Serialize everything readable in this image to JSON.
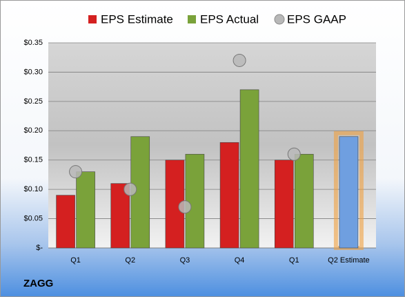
{
  "chart_data": {
    "type": "bar",
    "categories": [
      "Q1",
      "Q2",
      "Q3",
      "Q4",
      "Q1",
      "Q2 Estimate"
    ],
    "series": [
      {
        "name": "EPS Estimate",
        "color": "#d42020",
        "values": [
          0.09,
          0.11,
          0.15,
          0.18,
          0.15,
          0.19
        ]
      },
      {
        "name": "EPS Actual",
        "color": "#7aa23a",
        "values": [
          0.13,
          0.19,
          0.16,
          0.27,
          0.16,
          null
        ]
      },
      {
        "name": "EPS GAAP",
        "color": "#b8b8b8",
        "marker": "circle",
        "values": [
          0.13,
          0.1,
          0.07,
          0.32,
          0.16,
          null
        ]
      }
    ],
    "highlight": {
      "index": 5,
      "color": "#6f9fe0",
      "glow": "#f0a040"
    },
    "ylim": [
      0,
      0.35
    ],
    "yticks": [
      {
        "value": 0,
        "label": "$-"
      },
      {
        "value": 0.05,
        "label": "$0.05"
      },
      {
        "value": 0.1,
        "label": "$0.10"
      },
      {
        "value": 0.15,
        "label": "$0.15"
      },
      {
        "value": 0.2,
        "label": "$0.20"
      },
      {
        "value": 0.25,
        "label": "$0.25"
      },
      {
        "value": 0.3,
        "label": "$0.30"
      },
      {
        "value": 0.35,
        "label": "$0.35"
      }
    ],
    "grid": true,
    "legend": "top",
    "footer": "ZAGG"
  }
}
